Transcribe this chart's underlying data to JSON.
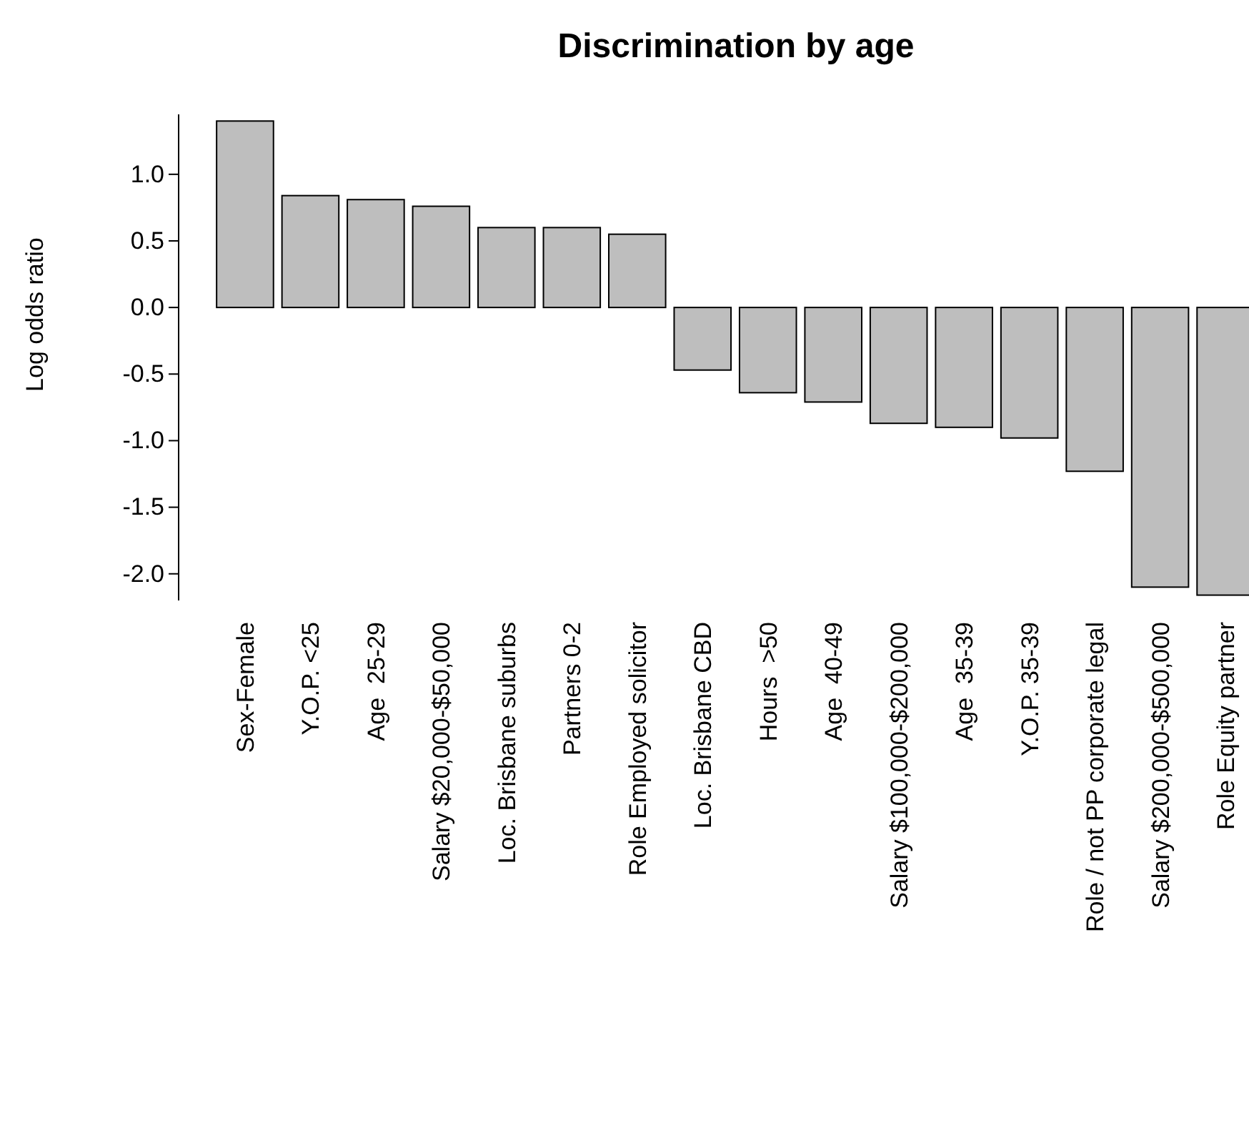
{
  "chart_data": {
    "type": "bar",
    "title": "Discrimination by age",
    "ylabel": "Log odds ratio",
    "categories": [
      "Sex-Female",
      "Y.O.P. <25",
      "Age  25-29",
      "Salary $20,000-$50,000",
      "Loc. Brisbane suburbs",
      "Partners 0-2",
      "Role Employed solicitor",
      "Loc. Brisbane CBD",
      "Hours  >50",
      "Age  40-49",
      "Salary $100,000-$200,000",
      "Age  35-39",
      "Y.O.P. 35-39",
      "Role / not PP corporate legal",
      "Salary $200,000-$500,000",
      "Role Equity partner"
    ],
    "series": [
      {
        "color": "#bebebe",
        "values": [
          1.4,
          0.84,
          0.81,
          0.76,
          0.6,
          0.6,
          0.55,
          -0.47,
          -0.64,
          -0.71,
          -0.87,
          -0.9,
          -0.98,
          -1.23,
          -2.1,
          -2.16
        ]
      }
    ],
    "ylim": [
      -2.2,
      1.45
    ],
    "yticks": [
      {
        "value": -2,
        "label": "-2.0"
      },
      {
        "value": -1.5,
        "label": "-1.5"
      },
      {
        "value": -1,
        "label": "-1.0"
      },
      {
        "value": -0.5,
        "label": "-0.5"
      },
      {
        "value": 0,
        "label": "0.0"
      },
      {
        "value": 0.5,
        "label": "0.5"
      },
      {
        "value": 1,
        "label": "1.0"
      }
    ],
    "grid": false
  }
}
